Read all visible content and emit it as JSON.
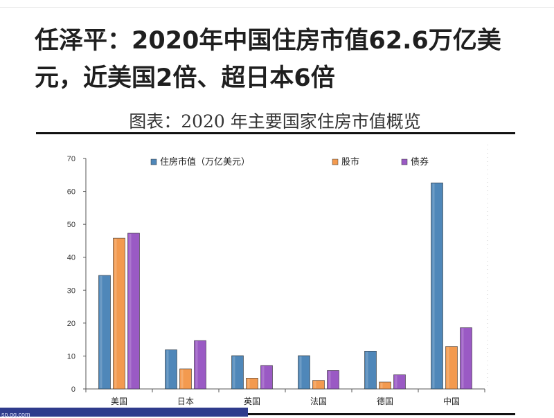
{
  "headline": "任泽平：2020年中国住房市值62.6万亿美元，近美国2倍、超日本6倍",
  "watermark": "sp.qq.com",
  "colors": {
    "housing": "#4f87b9",
    "stocks": "#f39a4f",
    "bonds": "#9a5ac4",
    "text": "#1f1f1f",
    "axis": "#444444"
  },
  "chart_data": {
    "type": "bar",
    "title": "图表：2020 年主要国家住房市值概览",
    "xlabel": "",
    "ylabel": "",
    "categories": [
      "美国",
      "日本",
      "英国",
      "法国",
      "德国",
      "中国"
    ],
    "series": [
      {
        "name": "住房市值（万亿美元）",
        "color": "#4f87b9",
        "values": [
          34.5,
          11.9,
          10.1,
          10.1,
          11.5,
          62.6
        ]
      },
      {
        "name": "股市",
        "color": "#f39a4f",
        "values": [
          45.8,
          6.1,
          3.3,
          2.6,
          2.1,
          12.9
        ]
      },
      {
        "name": "债券",
        "color": "#9a5ac4",
        "values": [
          47.3,
          14.7,
          7.1,
          5.6,
          4.3,
          18.6
        ]
      }
    ],
    "ylim": [
      0,
      70
    ],
    "yticks": [
      0,
      10,
      20,
      30,
      40,
      50,
      60,
      70
    ],
    "legend_position": "top",
    "grid": false
  }
}
